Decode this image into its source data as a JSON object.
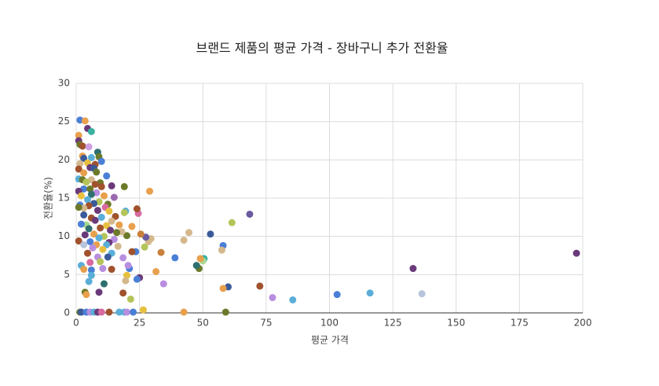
{
  "chart_data": {
    "type": "scatter",
    "title": "브랜드 제품의 평균 가격 - 장바구니 추가 전환율",
    "x_label": "평균 가격",
    "y_label": "전환율(%)",
    "xlim": [
      0,
      200
    ],
    "xticks": [
      0,
      25,
      50,
      75,
      100,
      125,
      150,
      175,
      200
    ],
    "ylim": [
      0,
      30
    ],
    "yticks": [
      0,
      5,
      10,
      15,
      20,
      25,
      30
    ],
    "grid": true,
    "x": [
      197.5,
      133,
      136.5,
      116,
      103,
      85.5,
      77.5,
      72.5,
      68.5,
      61.5,
      60,
      59,
      58,
      58,
      57.5,
      53,
      50.5,
      50,
      49,
      48.5,
      47.5,
      44.5,
      42.5,
      42.5,
      39,
      34.5,
      33.5,
      31.5,
      29.5,
      29,
      28.5,
      27.5,
      27,
      26.5,
      25.5,
      25,
      24.5,
      24,
      24,
      22,
      23.5,
      22,
      21.5,
      21,
      20.5,
      20,
      19.5,
      20,
      19.5,
      19,
      19,
      18.5,
      19,
      20,
      22.5,
      18.5,
      18,
      17,
      1.5,
      3.5,
      4.5,
      6,
      1,
      1,
      1.5,
      2.5,
      5,
      8.5,
      9,
      2.5,
      3,
      6,
      10,
      4.5,
      7.5,
      1.5,
      5.5,
      1,
      7,
      8,
      3,
      12,
      1,
      2.5,
      6,
      4,
      9.5,
      7.5,
      10,
      14,
      3,
      5.5,
      1,
      8,
      6,
      2,
      11,
      15,
      4.5,
      9,
      7,
      12.5,
      1.5,
      5,
      3,
      11.5,
      8.5,
      13,
      1,
      3,
      6,
      10,
      15.5,
      14,
      7.5,
      4,
      12,
      2,
      9.5,
      5,
      13.5,
      16,
      3.5,
      7,
      11,
      9,
      15,
      1,
      5.5,
      13,
      3,
      8,
      16.5,
      12,
      6.5,
      10.5,
      14,
      4.5,
      8.5,
      12.5,
      5.5,
      9.5,
      2,
      10.5,
      6,
      3,
      14,
      6,
      5,
      11,
      3.5,
      4,
      9,
      1.5,
      2,
      4,
      5.5,
      7,
      8.5,
      10,
      13,
      17
    ],
    "values": [
      7.8,
      5.8,
      2.5,
      2.6,
      2.4,
      1.7,
      2.0,
      3.5,
      12.9,
      11.8,
      3.4,
      0.1,
      3.2,
      8.8,
      8.2,
      10.3,
      7.1,
      6.8,
      7.1,
      5.8,
      6.2,
      10.5,
      9.5,
      0.1,
      7.2,
      3.8,
      7.9,
      5.4,
      9.7,
      15.9,
      9.3,
      9.9,
      8.6,
      0.4,
      10.3,
      4.6,
      13.0,
      13.6,
      4.4,
      11.3,
      8.0,
      8.0,
      1.8,
      5.8,
      6.2,
      4.9,
      4.2,
      10.1,
      13.3,
      13.1,
      16.5,
      2.6,
      0.1,
      0.1,
      0.1,
      7.2,
      10.6,
      11.5,
      25.2,
      25.1,
      24.1,
      23.7,
      23.2,
      22.5,
      22.0,
      21.8,
      21.7,
      21.0,
      20.4,
      20.5,
      20.2,
      20.3,
      19.8,
      19.6,
      19.4,
      19.5,
      19.0,
      18.8,
      18.9,
      18.4,
      18.3,
      17.9,
      17.5,
      17.4,
      17.4,
      17.1,
      17.0,
      16.8,
      16.5,
      16.6,
      16.2,
      16.2,
      15.9,
      15.7,
      15.5,
      15.3,
      15.3,
      15.1,
      14.8,
      14.5,
      14.3,
      14.2,
      14.1,
      14.0,
      13.7,
      13.8,
      13.4,
      13.3,
      13.8,
      12.8,
      12.4,
      12.5,
      12.6,
      12.0,
      12.1,
      11.5,
      11.4,
      11.6,
      11.1,
      11.0,
      10.8,
      10.5,
      10.2,
      10.3,
      10.0,
      9.8,
      9.6,
      9.4,
      9.3,
      9.2,
      8.9,
      8.9,
      8.7,
      8.9,
      8.5,
      8.3,
      7.8,
      7.8,
      7.3,
      7.3,
      6.6,
      6.7,
      6.2,
      5.8,
      5.6,
      5.7,
      5.7,
      4.9,
      4.1,
      3.8,
      2.7,
      2.4,
      2.7,
      0.1,
      0.1,
      0.1,
      0.1,
      0.1,
      0.1,
      0.1,
      0.1,
      0.1
    ],
    "colors": [
      "#6b3a7a",
      "#6b3a7a",
      "#b8c4dc",
      "#5aaed8",
      "#4a7fd6",
      "#5aaed8",
      "#b88ee0",
      "#a0522d",
      "#6a5aa0",
      "#b5c45a",
      "#3a5a9a",
      "#6b7a2a",
      "#e8a04c",
      "#4a7fd6",
      "#d4b88c",
      "#3a5a9a",
      "#3ab0a0",
      "#a8d890",
      "#e8a04c",
      "#6b7a2a",
      "#2f6f6f",
      "#d4b88c",
      "#d4b88c",
      "#e8a04c",
      "#4a7fd6",
      "#b88ee0",
      "#c8803a",
      "#e8a04c",
      "#d4b88c",
      "#e8a04c",
      "#d4b88c",
      "#6a5aa0",
      "#b5c45a",
      "#e8c040",
      "#c8803a",
      "#6b3a7a",
      "#d86aa0",
      "#a0522d",
      "#4a7fd6",
      "#e8a04c",
      "#4a7fd6",
      "#a0522d",
      "#b5c45a",
      "#4a7fd6",
      "#b88ee0",
      "#e8c040",
      "#d4b88c",
      "#6b7a2a",
      "#5aaed8",
      "#b5c45a",
      "#6b7a2a",
      "#a0522d",
      "#5aaed8",
      "#b88ee0",
      "#4a7fd6",
      "#b88ee0",
      "#d4b88c",
      "#e8a04c",
      "#4a7fd6",
      "#e8a04c",
      "#6b3a7a",
      "#3ab0a0",
      "#e8a04c",
      "#6b3a7a",
      "#6b7a2a",
      "#a0522d",
      "#d0a0e0",
      "#2f6f6f",
      "#6b7a2a",
      "#e8a04c",
      "#3a5a9a",
      "#5aaed8",
      "#4a7fd6",
      "#e8c040",
      "#a0522d",
      "#d4b88c",
      "#6b3a7a",
      "#a0522d",
      "#3a5a9a",
      "#6b7a2a",
      "#e8a04c",
      "#4a7fd6",
      "#5aaed8",
      "#6b7a2a",
      "#d4b88c",
      "#b5c45a",
      "#6b7a2a",
      "#a0522d",
      "#a0522d",
      "#6b3a7a",
      "#4a7fd6",
      "#6b7a2a",
      "#6b3a7a",
      "#b88ee0",
      "#2f6f6f",
      "#e8c040",
      "#e8a04c",
      "#9a6ab0",
      "#5aaed8",
      "#b5c45a",
      "#3a5a9a",
      "#6b7a2a",
      "#4a7fd6",
      "#a0522d",
      "#d4b88c",
      "#d86aa0",
      "#6b3a7a",
      "#e8c040",
      "#6b7a2a",
      "#3a5a9a",
      "#a0522d",
      "#5aaed8",
      "#a0522d",
      "#d4b88c",
      "#6b3a7a",
      "#a8d890",
      "#e8c040",
      "#4a7fd6",
      "#a0522d",
      "#2f6f6f",
      "#6b3a7a",
      "#6b7a2a",
      "#6b3a7a",
      "#e8a04c",
      "#b5c45a",
      "#5aaed8",
      "#b88ee0",
      "#a0522d",
      "#4a7fd6",
      "#6b3a7a",
      "#b8c4dc",
      "#e8a04c",
      "#d4b88c",
      "#5aaed8",
      "#b88ee0",
      "#e8c040",
      "#5aaed8",
      "#a0522d",
      "#b88ee0",
      "#3a5a9a",
      "#d86aa0",
      "#b5c45a",
      "#5aaed8",
      "#b88ee0",
      "#4a7fd6",
      "#e8a04c",
      "#a0522d",
      "#5aaed8",
      "#5aaed8",
      "#2f6f6f",
      "#6b7a2a",
      "#e8a04c",
      "#6b3a7a",
      "#6b7a2a",
      "#3a5a9a",
      "#4a7fd6",
      "#b88ee0",
      "#5aaed8",
      "#6b3a7a",
      "#d86aa0",
      "#a0522d",
      "#5aaed8"
    ]
  }
}
